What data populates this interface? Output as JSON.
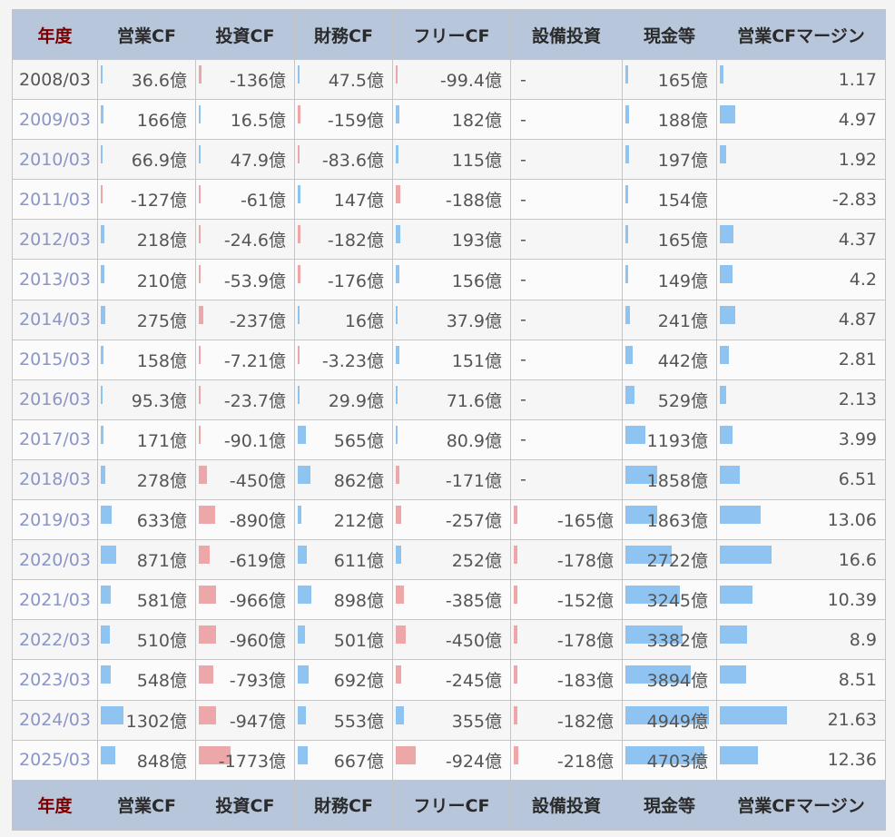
{
  "headers": [
    "年度",
    "営業CF",
    "投資CF",
    "財務CF",
    "フリーCF",
    "設備投資",
    "現金等",
    "営業CFマージン"
  ],
  "colors": {
    "header_bg": "#b8c6db",
    "positive_bar": "#8fc3f2",
    "negative_bar": "#eda7a9",
    "year_link": "#8a95c8"
  },
  "rows": [
    {
      "year": "2008/03",
      "link": false,
      "op": "36.6億",
      "opv": 36.6,
      "inv": "-136億",
      "invv": -136,
      "fin": "47.5億",
      "finv": 47.5,
      "free": "-99.4億",
      "freev": -99.4,
      "capex": "-",
      "capexv": 0,
      "cash": "165億",
      "cashv": 165,
      "margin": "1.17",
      "marginv": 1.17
    },
    {
      "year": "2009/03",
      "link": true,
      "op": "166億",
      "opv": 166,
      "inv": "16.5億",
      "invv": 16.5,
      "fin": "-159億",
      "finv": -159,
      "free": "182億",
      "freev": 182,
      "capex": "-",
      "capexv": 0,
      "cash": "188億",
      "cashv": 188,
      "margin": "4.97",
      "marginv": 4.97
    },
    {
      "year": "2010/03",
      "link": true,
      "op": "66.9億",
      "opv": 66.9,
      "inv": "47.9億",
      "invv": 47.9,
      "fin": "-83.6億",
      "finv": -83.6,
      "free": "115億",
      "freev": 115,
      "capex": "-",
      "capexv": 0,
      "cash": "197億",
      "cashv": 197,
      "margin": "1.92",
      "marginv": 1.92
    },
    {
      "year": "2011/03",
      "link": true,
      "op": "-127億",
      "opv": -127,
      "inv": "-61億",
      "invv": -61,
      "fin": "147億",
      "finv": 147,
      "free": "-188億",
      "freev": -188,
      "capex": "-",
      "capexv": 0,
      "cash": "154億",
      "cashv": 154,
      "margin": "-2.83",
      "marginv": -2.83
    },
    {
      "year": "2012/03",
      "link": true,
      "op": "218億",
      "opv": 218,
      "inv": "-24.6億",
      "invv": -24.6,
      "fin": "-182億",
      "finv": -182,
      "free": "193億",
      "freev": 193,
      "capex": "-",
      "capexv": 0,
      "cash": "165億",
      "cashv": 165,
      "margin": "4.37",
      "marginv": 4.37
    },
    {
      "year": "2013/03",
      "link": true,
      "op": "210億",
      "opv": 210,
      "inv": "-53.9億",
      "invv": -53.9,
      "fin": "-176億",
      "finv": -176,
      "free": "156億",
      "freev": 156,
      "capex": "-",
      "capexv": 0,
      "cash": "149億",
      "cashv": 149,
      "margin": "4.2",
      "marginv": 4.2
    },
    {
      "year": "2014/03",
      "link": true,
      "op": "275億",
      "opv": 275,
      "inv": "-237億",
      "invv": -237,
      "fin": "16億",
      "finv": 16,
      "free": "37.9億",
      "freev": 37.9,
      "capex": "-",
      "capexv": 0,
      "cash": "241億",
      "cashv": 241,
      "margin": "4.87",
      "marginv": 4.87
    },
    {
      "year": "2015/03",
      "link": true,
      "op": "158億",
      "opv": 158,
      "inv": "-7.21億",
      "invv": -7.21,
      "fin": "-3.23億",
      "finv": -3.23,
      "free": "151億",
      "freev": 151,
      "capex": "-",
      "capexv": 0,
      "cash": "442億",
      "cashv": 442,
      "margin": "2.81",
      "marginv": 2.81
    },
    {
      "year": "2016/03",
      "link": true,
      "op": "95.3億",
      "opv": 95.3,
      "inv": "-23.7億",
      "invv": -23.7,
      "fin": "29.9億",
      "finv": 29.9,
      "free": "71.6億",
      "freev": 71.6,
      "capex": "-",
      "capexv": 0,
      "cash": "529億",
      "cashv": 529,
      "margin": "2.13",
      "marginv": 2.13
    },
    {
      "year": "2017/03",
      "link": true,
      "op": "171億",
      "opv": 171,
      "inv": "-90.1億",
      "invv": -90.1,
      "fin": "565億",
      "finv": 565,
      "free": "80.9億",
      "freev": 80.9,
      "capex": "-",
      "capexv": 0,
      "cash": "1193億",
      "cashv": 1193,
      "margin": "3.99",
      "marginv": 3.99
    },
    {
      "year": "2018/03",
      "link": true,
      "op": "278億",
      "opv": 278,
      "inv": "-450億",
      "invv": -450,
      "fin": "862億",
      "finv": 862,
      "free": "-171億",
      "freev": -171,
      "capex": "-",
      "capexv": 0,
      "cash": "1858億",
      "cashv": 1858,
      "margin": "6.51",
      "marginv": 6.51
    },
    {
      "year": "2019/03",
      "link": true,
      "op": "633億",
      "opv": 633,
      "inv": "-890億",
      "invv": -890,
      "fin": "212億",
      "finv": 212,
      "free": "-257億",
      "freev": -257,
      "capex": "-165億",
      "capexv": -165,
      "cash": "1863億",
      "cashv": 1863,
      "margin": "13.06",
      "marginv": 13.06
    },
    {
      "year": "2020/03",
      "link": true,
      "op": "871億",
      "opv": 871,
      "inv": "-619億",
      "invv": -619,
      "fin": "611億",
      "finv": 611,
      "free": "252億",
      "freev": 252,
      "capex": "-178億",
      "capexv": -178,
      "cash": "2722億",
      "cashv": 2722,
      "margin": "16.6",
      "marginv": 16.6
    },
    {
      "year": "2021/03",
      "link": true,
      "op": "581億",
      "opv": 581,
      "inv": "-966億",
      "invv": -966,
      "fin": "898億",
      "finv": 898,
      "free": "-385億",
      "freev": -385,
      "capex": "-152億",
      "capexv": -152,
      "cash": "3245億",
      "cashv": 3245,
      "margin": "10.39",
      "marginv": 10.39
    },
    {
      "year": "2022/03",
      "link": true,
      "op": "510億",
      "opv": 510,
      "inv": "-960億",
      "invv": -960,
      "fin": "501億",
      "finv": 501,
      "free": "-450億",
      "freev": -450,
      "capex": "-178億",
      "capexv": -178,
      "cash": "3382億",
      "cashv": 3382,
      "margin": "8.9",
      "marginv": 8.9
    },
    {
      "year": "2023/03",
      "link": true,
      "op": "548億",
      "opv": 548,
      "inv": "-793億",
      "invv": -793,
      "fin": "692億",
      "finv": 692,
      "free": "-245億",
      "freev": -245,
      "capex": "-183億",
      "capexv": -183,
      "cash": "3894億",
      "cashv": 3894,
      "margin": "8.51",
      "marginv": 8.51
    },
    {
      "year": "2024/03",
      "link": true,
      "op": "1302億",
      "opv": 1302,
      "inv": "-947億",
      "invv": -947,
      "fin": "553億",
      "finv": 553,
      "free": "355億",
      "freev": 355,
      "capex": "-182億",
      "capexv": -182,
      "cash": "4949億",
      "cashv": 4949,
      "margin": "21.63",
      "marginv": 21.63
    },
    {
      "year": "2025/03",
      "link": true,
      "op": "848億",
      "opv": 848,
      "inv": "-1773億",
      "invv": -1773,
      "fin": "667億",
      "finv": 667,
      "free": "-924億",
      "freev": -924,
      "capex": "-218億",
      "capexv": -218,
      "cash": "4703億",
      "cashv": 4703,
      "margin": "12.36",
      "marginv": 12.36
    }
  ]
}
